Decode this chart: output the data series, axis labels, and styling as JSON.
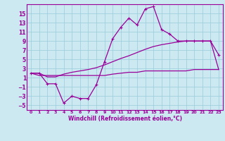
{
  "bg_color": "#cce8f0",
  "line_color": "#990099",
  "grid_color": "#99ccdd",
  "xlabel": "Windchill (Refroidissement éolien,°C)",
  "xlabel_color": "#990099",
  "ylabel_yticks": [
    -5,
    -3,
    -1,
    1,
    3,
    5,
    7,
    9,
    11,
    13,
    15
  ],
  "xticks": [
    0,
    1,
    2,
    3,
    4,
    5,
    6,
    7,
    8,
    9,
    10,
    11,
    12,
    13,
    14,
    15,
    16,
    17,
    18,
    19,
    20,
    21,
    22,
    23
  ],
  "xlim": [
    -0.5,
    23.5
  ],
  "ylim": [
    -6,
    17
  ],
  "curve1_x": [
    0,
    1,
    2,
    3,
    4,
    5,
    6,
    7,
    8,
    9,
    10,
    11,
    12,
    13,
    14,
    15,
    16,
    17,
    18,
    19,
    20,
    21,
    22,
    23
  ],
  "curve1_y": [
    2,
    2,
    -0.3,
    -0.3,
    -4.5,
    -3.0,
    -3.5,
    -3.5,
    -0.5,
    4.5,
    9.5,
    12,
    14,
    12.5,
    16,
    16.5,
    11.5,
    10.5,
    9,
    9,
    9,
    9,
    9,
    6
  ],
  "curve2_x": [
    0,
    1,
    2,
    3,
    4,
    5,
    6,
    7,
    8,
    9,
    10,
    11,
    12,
    13,
    14,
    15,
    16,
    17,
    18,
    19,
    20,
    21,
    22,
    23
  ],
  "curve2_y": [
    2,
    2,
    1.2,
    1.2,
    1.8,
    2.2,
    2.5,
    2.8,
    3.2,
    3.8,
    4.5,
    5.2,
    5.8,
    6.5,
    7.2,
    7.8,
    8.2,
    8.5,
    8.8,
    9.0,
    9.0,
    9.0,
    9.0,
    2.8
  ],
  "curve3_x": [
    0,
    1,
    2,
    3,
    4,
    5,
    6,
    7,
    8,
    9,
    10,
    11,
    12,
    13,
    14,
    15,
    16,
    17,
    18,
    19,
    20,
    21,
    22,
    23
  ],
  "curve3_y": [
    2,
    1.5,
    1.5,
    1.5,
    1.5,
    1.5,
    1.5,
    1.5,
    1.5,
    1.5,
    1.8,
    2.0,
    2.2,
    2.2,
    2.5,
    2.5,
    2.5,
    2.5,
    2.5,
    2.5,
    2.8,
    2.8,
    2.8,
    2.8
  ]
}
